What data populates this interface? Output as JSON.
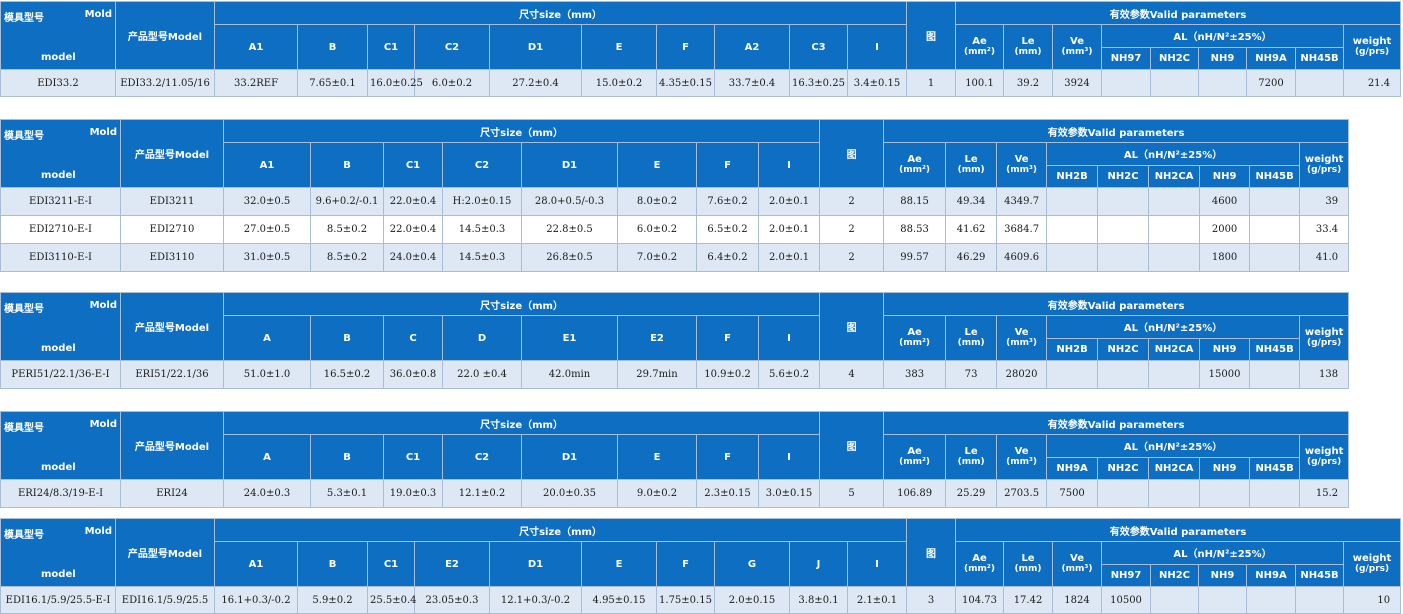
{
  "labels": {
    "mold_cn": "模具型号",
    "mold_en1": "Mold",
    "mold_en2": "model",
    "product": "产品型号Model",
    "size": "尺寸size（mm）",
    "fig": "图",
    "valid": "有效参数Valid parameters",
    "ae": "Ae",
    "le": "Le",
    "ve": "Ve",
    "mm2": "(mm²)",
    "mm": "(mm)",
    "mm3": "(mm³)",
    "al": "AL（nH/N²±25%）",
    "weight": "weight",
    "gprs": "(g/prs)"
  },
  "tables": [
    {
      "dims": [
        "A1",
        "B",
        "C1",
        "C2",
        "D1",
        "E",
        "F",
        "A2",
        "C3",
        "I"
      ],
      "mats": [
        "NH97",
        "NH2C",
        "NH9",
        "NH9A",
        "NH45B"
      ],
      "rows": [
        {
          "mold": "EDI33.2",
          "product": "EDI33.2/11.05/16",
          "vals": [
            "33.2REF",
            "7.65±0.1",
            "16.0±0.25",
            "6.0±0.2",
            "27.2±0.4",
            "15.0±0.2",
            "4.35±0.15",
            "33.7±0.4",
            "16.3±0.25",
            "3.4±0.15"
          ],
          "fig": "1",
          "ae": "100.1",
          "le": "39.2",
          "ve": "3924",
          "al": [
            "",
            "",
            "",
            "7200",
            ""
          ],
          "weight": "21.4"
        }
      ]
    },
    {
      "dims": [
        "A1",
        "B",
        "C1",
        "C2",
        "D1",
        "E",
        "F",
        "I"
      ],
      "mats": [
        "NH2B",
        "NH2C",
        "NH2CA",
        "NH9",
        "NH45B"
      ],
      "rows": [
        {
          "mold": "EDI3211-E-I",
          "product": "EDI3211",
          "vals": [
            "32.0±0.5",
            "9.6+0.2/-0.1",
            "22.0±0.4",
            "H:2.0±0.15",
            "28.0+0.5/-0.3",
            "8.0±0.2",
            "7.6±0.2",
            "2.0±0.1"
          ],
          "fig": "2",
          "ae": "88.15",
          "le": "49.34",
          "ve": "4349.7",
          "al": [
            "",
            "",
            "",
            "4600",
            ""
          ],
          "weight": "39"
        },
        {
          "mold": "EDI2710-E-I",
          "product": "EDI2710",
          "vals": [
            "27.0±0.5",
            "8.5±0.2",
            "22.0±0.4",
            "14.5±0.3",
            "22.8±0.5",
            "6.0±0.2",
            "6.5±0.2",
            "2.0±0.1"
          ],
          "fig": "2",
          "ae": "88.53",
          "le": "41.62",
          "ve": "3684.7",
          "al": [
            "",
            "",
            "",
            "2000",
            ""
          ],
          "weight": "33.4"
        },
        {
          "mold": "EDI3110-E-I",
          "product": "EDI3110",
          "vals": [
            "31.0±0.5",
            "8.5±0.2",
            "24.0±0.4",
            "14.5±0.3",
            "26.8±0.5",
            "7.0±0.2",
            "6.4±0.2",
            "2.0±0.1"
          ],
          "fig": "2",
          "ae": "99.57",
          "le": "46.29",
          "ve": "4609.6",
          "al": [
            "",
            "",
            "",
            "1800",
            ""
          ],
          "weight": "41.0"
        }
      ]
    },
    {
      "dims": [
        "A",
        "B",
        "C",
        "D",
        "E1",
        "E2",
        "F",
        "I"
      ],
      "mats": [
        "NH2B",
        "NH2C",
        "NH2CA",
        "NH9",
        "NH45B"
      ],
      "rows": [
        {
          "mold": "PERI51/22.1/36-E-I",
          "product": "ERI51/22.1/36",
          "vals": [
            "51.0±1.0",
            "16.5±0.2",
            "36.0±0.8",
            "22.0 ±0.4",
            "42.0min",
            "29.7min",
            "10.9±0.2",
            "5.6±0.2"
          ],
          "fig": "4",
          "ae": "383",
          "le": "73",
          "ve": "28020",
          "al": [
            "",
            "",
            "",
            "15000",
            ""
          ],
          "weight": "138"
        }
      ]
    },
    {
      "dims": [
        "A",
        "B",
        "C1",
        "C2",
        "D1",
        "E",
        "F",
        "I"
      ],
      "mats": [
        "NH9A",
        "NH2C",
        "NH2CA",
        "NH9",
        "NH45B"
      ],
      "rows": [
        {
          "mold": "ERI24/8.3/19-E-I",
          "product": "ERI24",
          "vals": [
            "24.0±0.3",
            "5.3±0.1",
            "19.0±0.3",
            "12.1±0.2",
            "20.0±0.35",
            "9.0±0.2",
            "2.3±0.15",
            "3.0±0.15"
          ],
          "fig": "5",
          "ae": "106.89",
          "le": "25.29",
          "ve": "2703.5",
          "al": [
            "7500",
            "",
            "",
            "",
            ""
          ],
          "weight": "15.2"
        }
      ]
    },
    {
      "dims": [
        "A1",
        "B",
        "C1",
        "E2",
        "D1",
        "E",
        "F",
        "G",
        "J",
        "I"
      ],
      "mats": [
        "NH97",
        "NH2C",
        "NH9",
        "NH9A",
        "NH45B"
      ],
      "rows": [
        {
          "mold": "EDI16.1/5.9/25.5-E-I",
          "product": "EDI16.1/5.9/25.5",
          "vals": [
            "16.1+0.3/-0.2",
            "5.9±0.2",
            "25.5±0.4",
            "23.05±0.3",
            "12.1+0.3/-0.2",
            "4.95±0.15",
            "1.75±0.15",
            "2.0±0.15",
            "3.8±0.1",
            "2.1±0.1"
          ],
          "fig": "3",
          "ae": "104.73",
          "le": "17.42",
          "ve": "1824",
          "al": [
            "10500",
            "",
            "",
            "",
            ""
          ],
          "weight": "10"
        }
      ]
    }
  ]
}
